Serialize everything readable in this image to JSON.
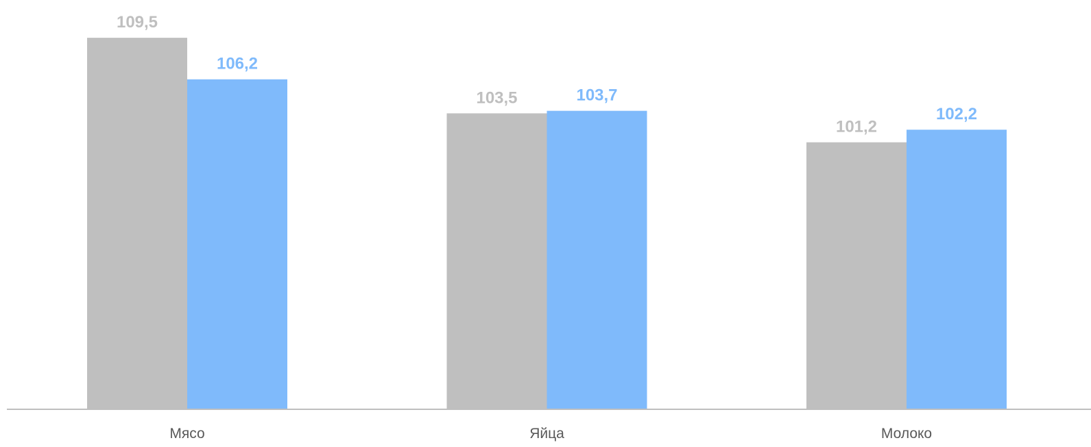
{
  "chart_data": {
    "type": "bar",
    "categories": [
      "Мясо",
      "Яйца",
      "Молоко"
    ],
    "series": [
      {
        "color": "#bfbfbf",
        "values": [
          109.5,
          103.5,
          101.2
        ],
        "labels": [
          "109,5",
          "103,5",
          "101,2"
        ]
      },
      {
        "color": "#7fbafb",
        "values": [
          106.2,
          103.7,
          102.2
        ],
        "labels": [
          "106,2",
          "103,7",
          "102,2"
        ]
      }
    ],
    "title": "",
    "xlabel": "",
    "ylabel": "",
    "ylim": [
      80,
      112.5
    ],
    "grid": false,
    "legend": "none",
    "axis_color": "#bfbfbf"
  }
}
